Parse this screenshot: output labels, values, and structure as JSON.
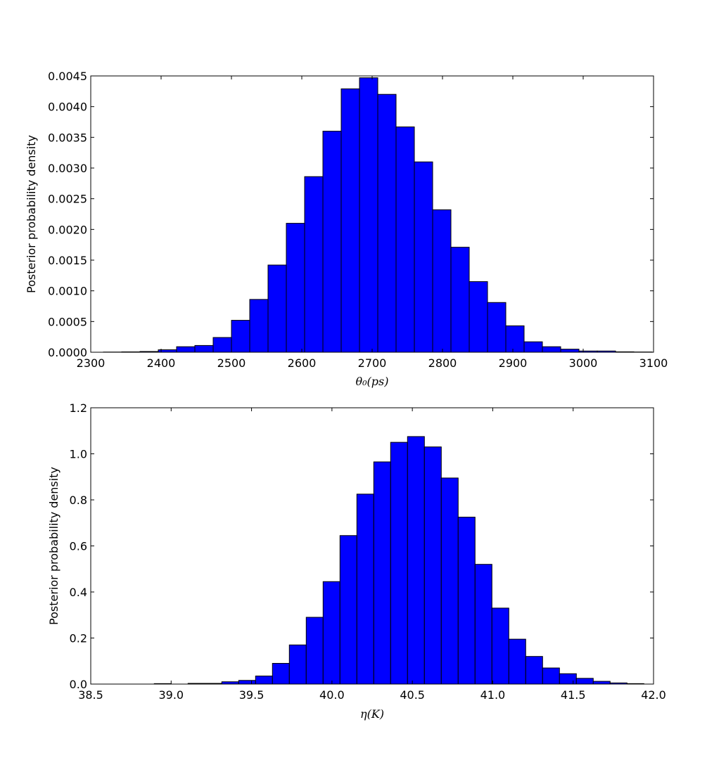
{
  "chart_data": [
    {
      "type": "bar",
      "histogram": true,
      "xlabel": "θ₀(ps)",
      "ylabel": "Posterior probability density",
      "xlim": [
        2300,
        3100
      ],
      "ylim": [
        0,
        0.0045
      ],
      "xticks": [
        "2300",
        "2400",
        "2500",
        "2600",
        "2700",
        "2800",
        "2900",
        "3000",
        "3100"
      ],
      "yticks": [
        "0.0000",
        "0.0005",
        "0.0010",
        "0.0015",
        "0.0020",
        "0.0025",
        "0.0030",
        "0.0035",
        "0.0040",
        "0.0045"
      ],
      "bin_start": 2318,
      "bin_width": 26,
      "values": [
        3e-06,
        6e-06,
        1.2e-05,
        4e-05,
        9e-05,
        0.00011,
        0.00024,
        0.00052,
        0.00086,
        0.00142,
        0.0021,
        0.00286,
        0.0036,
        0.00429,
        0.00447,
        0.0042,
        0.00367,
        0.0031,
        0.00232,
        0.00171,
        0.00115,
        0.00081,
        0.00043,
        0.00017,
        9e-05,
        5e-05,
        2e-05,
        2e-05,
        7e-06,
        4e-06
      ],
      "color": "#0000ff",
      "edgecolor": "#000000",
      "grid": false
    },
    {
      "type": "bar",
      "histogram": true,
      "xlabel": "η(K)",
      "ylabel": "Posterior probability density",
      "xlim": [
        38.5,
        42.0
      ],
      "ylim": [
        0,
        1.2
      ],
      "xticks": [
        "38.5",
        "39.0",
        "39.5",
        "40.0",
        "40.5",
        "41.0",
        "41.5",
        "42.0"
      ],
      "yticks": [
        "0.0",
        "0.2",
        "0.4",
        "0.6",
        "0.8",
        "1.0",
        "1.2"
      ],
      "bin_start": 38.685,
      "bin_width": 0.105,
      "values": [
        0.0,
        0.0,
        0.002,
        0.0,
        0.003,
        0.003,
        0.01,
        0.016,
        0.035,
        0.09,
        0.17,
        0.29,
        0.445,
        0.645,
        0.825,
        0.965,
        1.05,
        1.075,
        1.03,
        0.895,
        0.725,
        0.52,
        0.33,
        0.195,
        0.12,
        0.07,
        0.045,
        0.025,
        0.012,
        0.005,
        0.002
      ],
      "color": "#0000ff",
      "edgecolor": "#000000",
      "grid": false
    }
  ]
}
